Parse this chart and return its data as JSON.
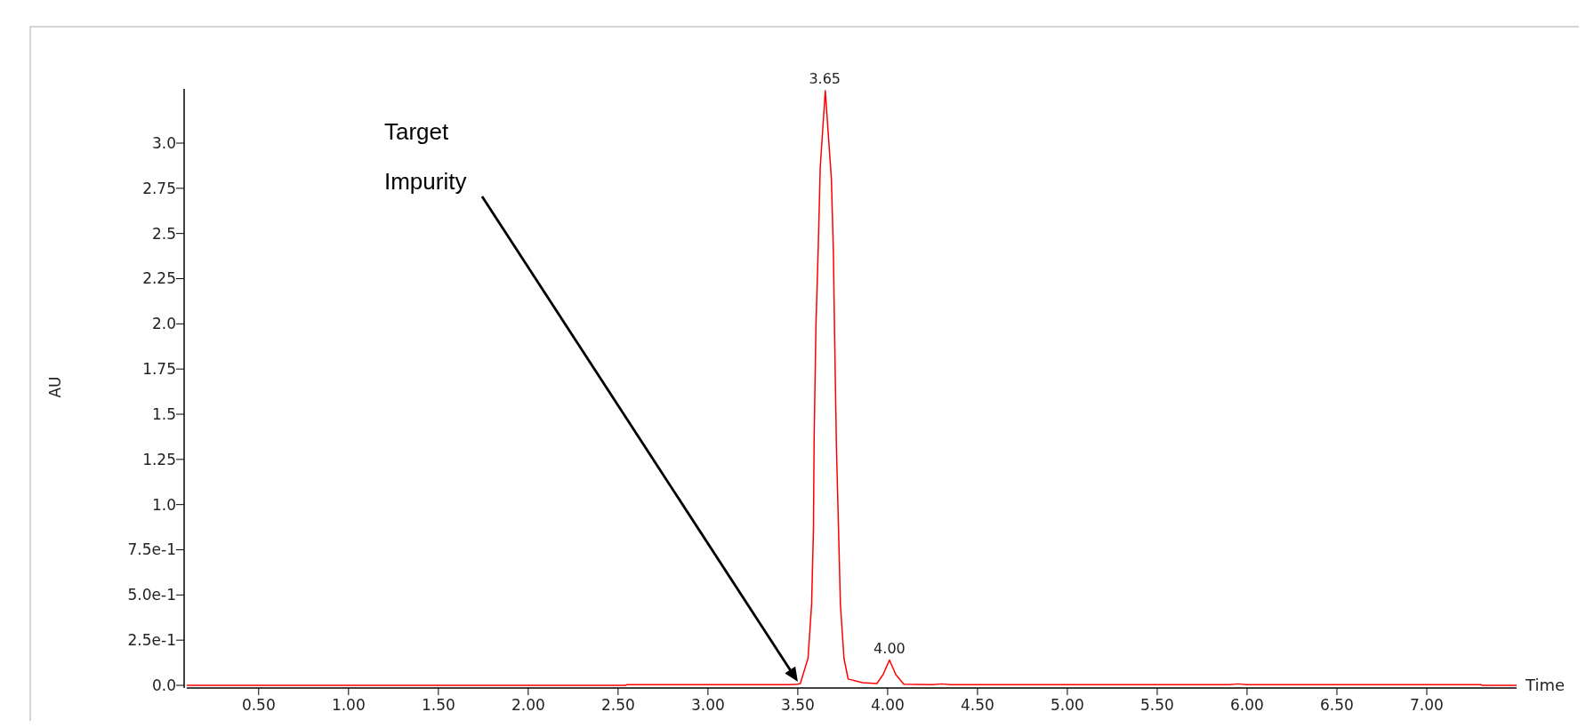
{
  "chart_data": {
    "type": "line",
    "xlabel": "Time",
    "ylabel": "AU",
    "xlim": [
      0.1,
      7.5
    ],
    "ylim": [
      0,
      3.3
    ],
    "xticks": [
      {
        "value": 0.5,
        "label": "0.50"
      },
      {
        "value": 1,
        "label": "1.00"
      },
      {
        "value": 1.5,
        "label": "1.50"
      },
      {
        "value": 2,
        "label": "2.00"
      },
      {
        "value": 2.5,
        "label": "2.50"
      },
      {
        "value": 3,
        "label": "3.00"
      },
      {
        "value": 3.5,
        "label": "3.50"
      },
      {
        "value": 4,
        "label": "4.00"
      },
      {
        "value": 4.5,
        "label": "4.50"
      },
      {
        "value": 5,
        "label": "5.00"
      },
      {
        "value": 5.5,
        "label": "5.50"
      },
      {
        "value": 6,
        "label": "6.00"
      },
      {
        "value": 6.5,
        "label": "6.50"
      },
      {
        "value": 7,
        "label": "7.00"
      }
    ],
    "yticks": [
      {
        "value": 0,
        "label": "0.0"
      },
      {
        "value": 0.25,
        "label": "2.5e-1"
      },
      {
        "value": 0.5,
        "label": "5.0e-1"
      },
      {
        "value": 0.75,
        "label": "7.5e-1"
      },
      {
        "value": 1,
        "label": "1.0"
      },
      1.25,
      1.5,
      1.75,
      {
        "value": 2,
        "label": "2.0"
      },
      2.25,
      2.5,
      2.75,
      {
        "value": 3,
        "label": "3.0"
      }
    ],
    "series": [
      {
        "color": "#ff0000",
        "x": [
          0.1,
          2.54,
          2.55,
          3.45,
          3.5,
          3.514,
          3.557,
          3.577,
          3.587,
          3.591,
          3.601,
          3.614,
          3.625,
          3.653,
          3.687,
          3.698,
          3.706,
          3.715,
          3.727,
          3.737,
          3.757,
          3.78,
          3.86,
          3.94,
          3.975,
          4.01,
          4.045,
          4.09,
          4.25,
          4.3,
          4.35,
          5.9,
          5.95,
          6.0,
          7.3,
          7.31,
          7.5
        ],
        "values": [
          0,
          0,
          0.004,
          0.004,
          0.006,
          0.01,
          0.15,
          0.45,
          0.86,
          1.37,
          1.99,
          2.43,
          2.87,
          3.29,
          2.8,
          2.4,
          1.86,
          1.32,
          0.85,
          0.45,
          0.15,
          0.035,
          0.015,
          0.01,
          0.06,
          0.14,
          0.06,
          0.006,
          0.004,
          0.008,
          0.004,
          0.004,
          0.008,
          0.004,
          0.004,
          0,
          0
        ]
      }
    ],
    "annotations": [
      {
        "text": "3.65",
        "x": 3.65,
        "y": 3.29
      },
      {
        "text": "4.00",
        "x": 4.01,
        "y": 0.14
      },
      "Target Impurity"
    ]
  }
}
